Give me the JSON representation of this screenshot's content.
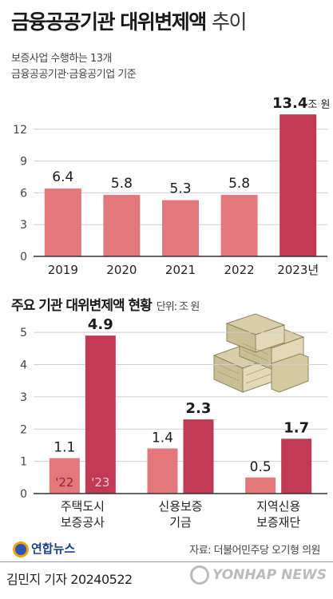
{
  "header": {
    "title_bold": "금융공공기관 대위변제액",
    "title_thin": "추이",
    "subtitle_line1": "보증사업 수행하는 13개",
    "subtitle_line2": "금융공공기관·금융공기업 기준"
  },
  "section2": {
    "title": "주요 기관 대위변제액 현황",
    "unit": "단위: 조 원"
  },
  "footer": {
    "logo": "연합뉴스",
    "source": "자료: 더불어민주당 오기형 의원",
    "author": "김민지 기자  20240522",
    "yonhap": "YONHAP NEWS"
  },
  "colors": {
    "light_bar": "#e3787c",
    "dark_bar": "#c03a55",
    "grid": "#cfcfcf",
    "axis": "#333333"
  },
  "chart_data": [
    {
      "type": "bar",
      "categories": [
        "2019",
        "2020",
        "2021",
        "2022",
        "2023년"
      ],
      "values": [
        6.4,
        5.8,
        5.3,
        5.8,
        13.4
      ],
      "value_labels": [
        "6.4",
        "5.8",
        "5.3",
        "5.8",
        "13.4"
      ],
      "last_value_unit": "조 원",
      "yticks": [
        "0",
        "3",
        "6",
        "9",
        "12"
      ],
      "ylim": [
        0,
        15
      ],
      "grid": true
    },
    {
      "type": "bar",
      "categories": [
        "주택도시\n보증공사",
        "신용보증\n기금",
        "지역신용\n보증재단"
      ],
      "series": [
        {
          "name": "'22",
          "values": [
            1.1,
            1.4,
            0.5
          ]
        },
        {
          "name": "'23",
          "values": [
            4.9,
            2.3,
            1.7
          ]
        }
      ],
      "value_labels": [
        [
          "1.1",
          "1.4",
          "0.5"
        ],
        [
          "4.9",
          "2.3",
          "1.7"
        ]
      ],
      "yticks": [
        "0",
        "1",
        "2",
        "3",
        "4",
        "5"
      ],
      "ylim": [
        0,
        5.4
      ],
      "grid": true
    }
  ]
}
